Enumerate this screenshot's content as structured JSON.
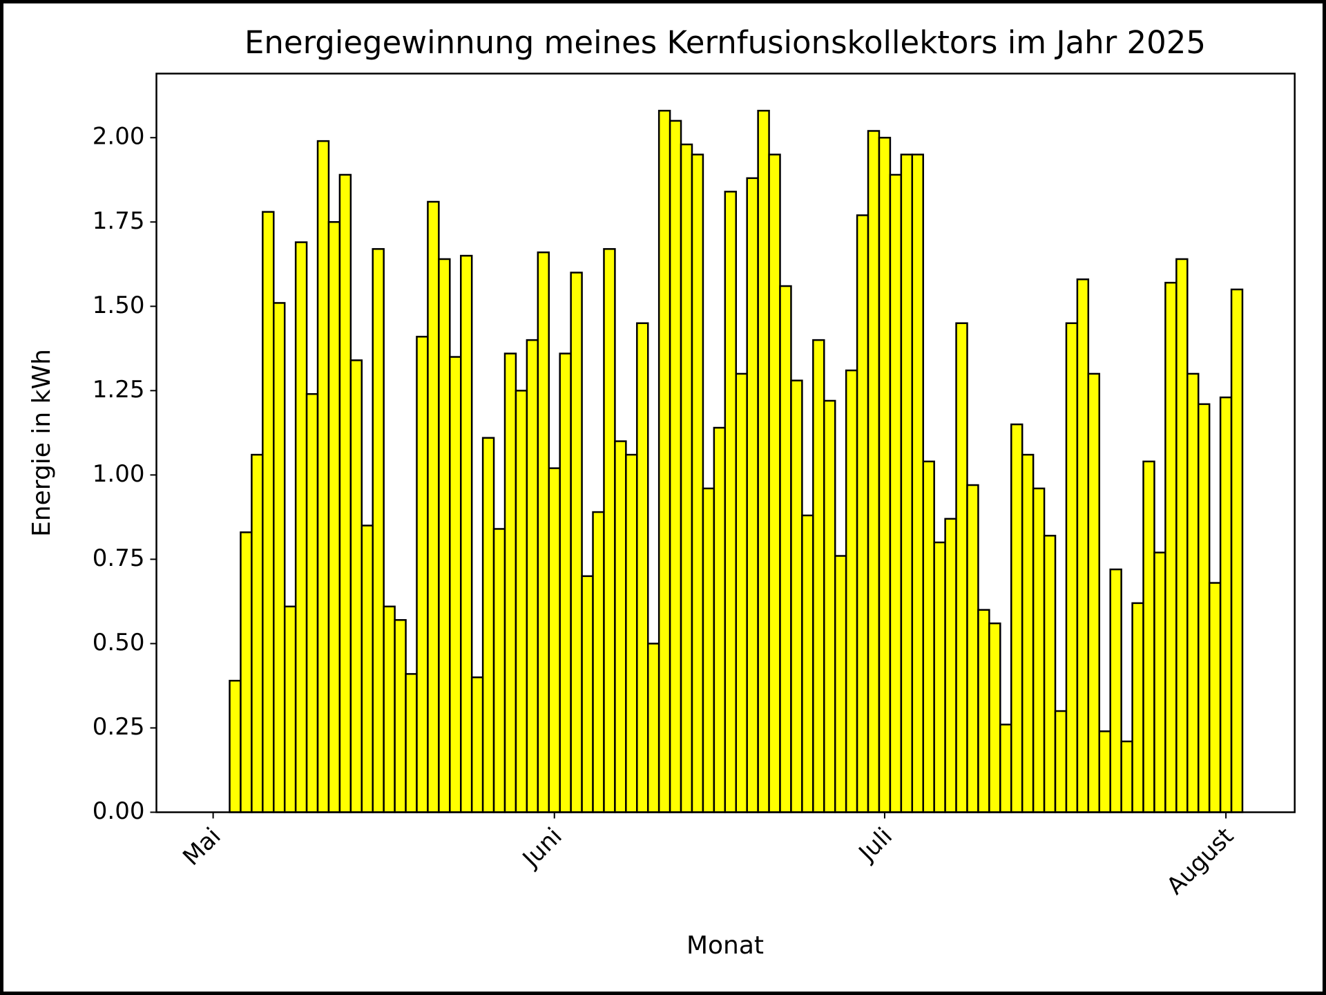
{
  "chart_data": {
    "type": "bar",
    "title": "Energiegewinnung meines Kernfusionskollektors im Jahr 2025",
    "x_label": "Monat",
    "y_label": "Energie in kWh",
    "color": "#ffff00",
    "edgecolor": "#000000",
    "categories": [
      "Mai",
      null,
      null,
      null,
      null,
      null,
      null,
      null,
      null,
      null,
      null,
      null,
      null,
      null,
      null,
      null,
      null,
      null,
      null,
      null,
      null,
      null,
      null,
      null,
      null,
      null,
      null,
      null,
      null,
      null,
      null,
      "Juni",
      null,
      null,
      null,
      null,
      null,
      null,
      null,
      null,
      null,
      null,
      null,
      null,
      null,
      null,
      null,
      null,
      null,
      null,
      null,
      null,
      null,
      null,
      null,
      null,
      null,
      null,
      null,
      null,
      null,
      "Juli",
      null,
      null,
      null,
      null,
      null,
      null,
      null,
      null,
      null,
      null,
      null,
      null,
      null,
      null,
      null,
      null,
      null,
      null,
      null,
      null,
      null,
      null,
      null,
      null,
      null,
      null,
      null,
      null,
      null,
      null,
      "August",
      null
    ],
    "values": [
      0,
      0,
      0.39,
      0.83,
      1.06,
      1.78,
      1.51,
      0.61,
      1.69,
      1.24,
      1.99,
      1.75,
      1.89,
      1.34,
      0.85,
      1.67,
      0.61,
      0.57,
      0.41,
      1.41,
      1.81,
      1.64,
      1.35,
      1.65,
      0.4,
      1.11,
      0.84,
      1.36,
      1.25,
      1.4,
      1.66,
      1.02,
      1.36,
      1.6,
      0.7,
      0.89,
      1.67,
      1.1,
      1.06,
      1.45,
      0.5,
      2.08,
      2.05,
      1.98,
      1.95,
      0.96,
      1.14,
      1.84,
      1.3,
      1.88,
      2.08,
      1.95,
      1.56,
      1.28,
      0.88,
      1.4,
      1.22,
      0.76,
      1.31,
      1.77,
      2.02,
      2.0,
      1.89,
      1.95,
      1.95,
      1.04,
      0.8,
      0.87,
      1.45,
      0.97,
      0.6,
      0.56,
      0.26,
      1.15,
      1.06,
      0.96,
      0.82,
      0.3,
      1.45,
      1.58,
      1.3,
      0.24,
      0.72,
      0.21,
      0.62,
      1.04,
      0.77,
      1.57,
      1.64,
      1.3,
      1.21,
      0.68,
      1.23,
      1.55
    ],
    "ylim": [
      0,
      2.19
    ],
    "yticks": [
      {
        "value": 0,
        "label": "0.00"
      },
      0.25,
      {
        "value": 0.5,
        "label": "0.50"
      },
      0.75,
      {
        "value": 1,
        "label": "1.00"
      },
      1.25,
      {
        "value": 1.5,
        "label": "1.50"
      },
      1.75,
      {
        "value": 2,
        "label": "2.00"
      }
    ],
    "grid": false
  }
}
